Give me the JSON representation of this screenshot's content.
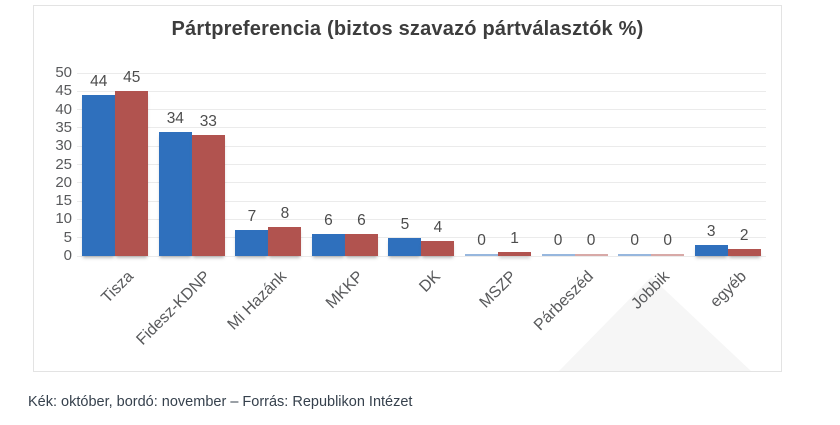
{
  "chart_data": {
    "type": "bar",
    "title": "Pártpreferencia (biztos szavazó pártválasztók %)",
    "categories": [
      "Tisza",
      "Fidesz-KDNP",
      "Mi Hazánk",
      "MKKP",
      "DK",
      "MSZP",
      "Párbeszéd",
      "Jobbik",
      "egyéb"
    ],
    "series": [
      {
        "name": "október",
        "color": "#2f70bd",
        "values": [
          44,
          34,
          7,
          6,
          5,
          0,
          0,
          0,
          3
        ]
      },
      {
        "name": "november",
        "color": "#b1534f",
        "values": [
          45,
          33,
          8,
          6,
          4,
          1,
          0,
          0,
          2
        ]
      }
    ],
    "xlabel": "",
    "ylabel": "",
    "ylim": [
      0,
      50
    ],
    "ytick_step": 5,
    "grid": true,
    "legend_position": "none"
  },
  "caption": "Kék: október, bordó: november – Forrás: Republikon Intézet",
  "colors": {
    "bar_blue": "#2f70bd",
    "bar_red": "#b1534f",
    "gridline": "#ebebeb",
    "axis_text": "#58595b",
    "value_text": "#4d4d4d",
    "title_text": "#3d3d3d",
    "card_border": "#e3e3e3",
    "caption_text": "#36414d",
    "watermark": "#f6f6f6"
  }
}
